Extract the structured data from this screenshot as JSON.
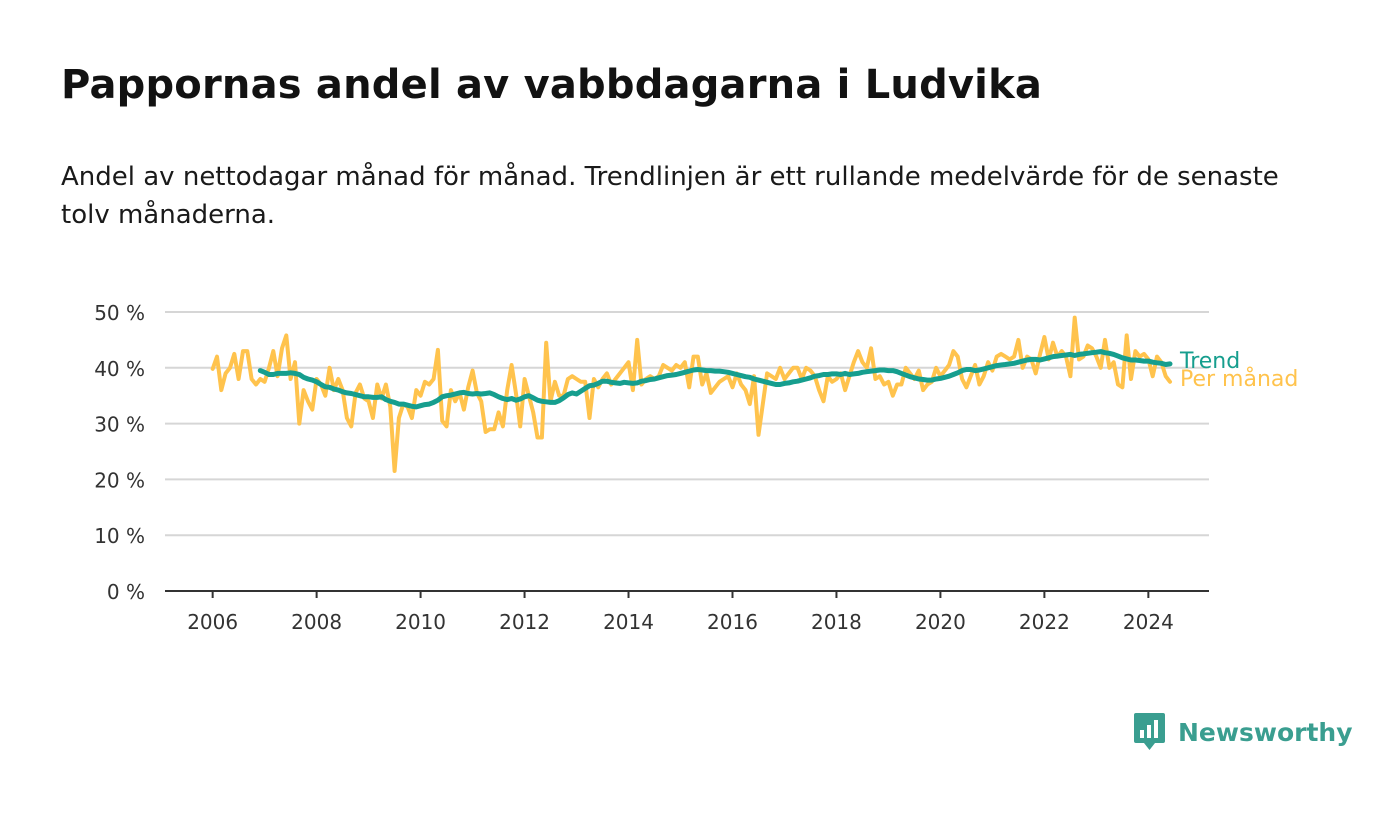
{
  "title": "Pappornas andel av vabbdagarna i Ludvika",
  "subtitle": "Andel av nettodagar månad för månad. Trendlinjen är ett rullande medelvärde för de senaste tolv månaderna.",
  "brand": {
    "name": "Newsworthy",
    "icon": "newsworthy-logo-icon",
    "color": "#3a9e90"
  },
  "colors": {
    "monthly": "#ffc34d",
    "trend": "#169e8e",
    "grid": "#d6d6d6",
    "axis": "#333333",
    "text": "#333333"
  },
  "chart_data": {
    "type": "line",
    "title": "",
    "xlabel": "",
    "ylabel": "",
    "x_start": "2006-01",
    "x_end": "2024-05",
    "xlim": [
      "2005-02",
      "2025-03"
    ],
    "ylim": [
      0,
      50
    ],
    "y_ticks": [
      0,
      10,
      20,
      30,
      40,
      50
    ],
    "y_tick_labels": [
      "0 %",
      "10 %",
      "20 %",
      "30 %",
      "40 %",
      "50 %"
    ],
    "x_ticks": [
      2006,
      2008,
      2010,
      2012,
      2014,
      2016,
      2018,
      2020,
      2022,
      2024
    ],
    "x_tick_labels": [
      "2006",
      "2008",
      "2010",
      "2012",
      "2014",
      "2016",
      "2018",
      "2020",
      "2022",
      "2024"
    ],
    "grid": true,
    "legend": "inline labels at line ends",
    "series": [
      {
        "name": "Per månad",
        "color": "#ffc34d",
        "values": [
          39.8,
          42.0,
          36.0,
          39.0,
          40.0,
          42.5,
          38.0,
          43.0,
          43.0,
          38.0,
          37.0,
          38.0,
          37.5,
          40.0,
          43.0,
          38.5,
          43.5,
          45.8,
          38.0,
          41.0,
          30.0,
          36.0,
          34.0,
          32.5,
          38.0,
          37.0,
          35.0,
          40.0,
          36.0,
          38.0,
          36.0,
          31.0,
          29.5,
          35.5,
          37.0,
          34.5,
          34.0,
          31.0,
          37.0,
          34.5,
          37.0,
          33.0,
          21.5,
          31.0,
          33.5,
          33.0,
          31.0,
          36.0,
          35.0,
          37.5,
          37.0,
          38.0,
          43.2,
          30.5,
          29.5,
          36.0,
          34.0,
          35.5,
          32.5,
          36.5,
          39.5,
          35.5,
          34.0,
          28.5,
          29.0,
          29.0,
          32.0,
          29.5,
          36.0,
          40.5,
          35.5,
          29.5,
          38.0,
          35.0,
          32.0,
          27.5,
          27.5,
          44.5,
          34.0,
          37.5,
          35.0,
          35.0,
          38.0,
          38.5,
          38.0,
          37.5,
          37.5,
          31.0,
          38.0,
          36.5,
          38.0,
          39.0,
          37.0,
          38.0,
          39.0,
          40.0,
          41.0,
          36.0,
          45.0,
          37.0,
          38.0,
          38.5,
          38.0,
          38.5,
          40.5,
          40.0,
          39.5,
          40.5,
          40.0,
          41.0,
          36.5,
          42.0,
          42.0,
          37.0,
          39.0,
          35.5,
          36.5,
          37.5,
          38.0,
          38.5,
          36.5,
          39.0,
          37.0,
          36.0,
          33.5,
          38.5,
          28.0,
          33.5,
          39.0,
          38.5,
          38.0,
          40.0,
          38.0,
          39.0,
          40.0,
          40.0,
          38.0,
          40.0,
          39.5,
          38.5,
          36.0,
          34.0,
          38.5,
          37.5,
          38.0,
          39.0,
          36.0,
          38.5,
          41.0,
          43.0,
          41.0,
          40.0,
          43.5,
          38.0,
          38.5,
          37.0,
          37.5,
          35.0,
          37.0,
          37.0,
          40.0,
          39.0,
          38.0,
          39.5,
          36.0,
          37.0,
          37.5,
          40.0,
          38.5,
          39.5,
          40.5,
          43.0,
          42.0,
          38.0,
          36.5,
          38.5,
          40.5,
          37.0,
          38.5,
          41.0,
          39.5,
          42.0,
          42.5,
          42.0,
          41.5,
          42.0,
          45.0,
          40.0,
          42.0,
          41.5,
          39.0,
          42.5,
          45.5,
          41.5,
          44.5,
          42.0,
          43.0,
          42.0,
          38.5,
          49.0,
          41.5,
          42.0,
          44.0,
          43.5,
          42.0,
          40.0,
          45.0,
          40.0,
          41.0,
          37.0,
          36.5,
          45.8,
          38.0,
          43.0,
          42.0,
          42.5,
          41.5,
          38.5,
          42.0,
          41.0,
          38.5,
          37.5
        ]
      },
      {
        "name": "Trend",
        "color": "#169e8e",
        "start": "2006-12",
        "values": [
          39.5,
          39.2,
          38.8,
          38.8,
          39.0,
          39.0,
          39.0,
          39.1,
          39.0,
          38.8,
          38.3,
          38.0,
          37.8,
          37.5,
          37.0,
          36.6,
          36.5,
          36.2,
          36.0,
          35.7,
          35.5,
          35.4,
          35.2,
          35.0,
          34.8,
          34.8,
          34.7,
          34.7,
          34.8,
          34.3,
          34.0,
          33.8,
          33.5,
          33.5,
          33.3,
          33.1,
          33.0,
          33.2,
          33.4,
          33.5,
          33.8,
          34.2,
          34.8,
          35.0,
          35.1,
          35.3,
          35.5,
          35.6,
          35.4,
          35.3,
          35.4,
          35.3,
          35.4,
          35.5,
          35.2,
          34.8,
          34.5,
          34.3,
          34.5,
          34.2,
          34.4,
          34.8,
          35.0,
          34.6,
          34.2,
          34.0,
          33.9,
          33.8,
          33.8,
          34.1,
          34.6,
          35.2,
          35.5,
          35.3,
          35.8,
          36.3,
          36.8,
          36.9,
          37.2,
          37.6,
          37.6,
          37.4,
          37.3,
          37.2,
          37.4,
          37.3,
          37.2,
          37.3,
          37.6,
          37.7,
          37.9,
          38.0,
          38.2,
          38.4,
          38.6,
          38.7,
          38.8,
          39.0,
          39.2,
          39.4,
          39.6,
          39.7,
          39.6,
          39.5,
          39.5,
          39.4,
          39.4,
          39.3,
          39.2,
          39.0,
          38.8,
          38.6,
          38.4,
          38.3,
          38.0,
          37.8,
          37.6,
          37.4,
          37.2,
          37.0,
          37.0,
          37.2,
          37.3,
          37.5,
          37.6,
          37.8,
          38.0,
          38.2,
          38.5,
          38.6,
          38.8,
          38.8,
          38.9,
          38.9,
          38.8,
          39.0,
          38.8,
          38.9,
          39.0,
          39.2,
          39.3,
          39.4,
          39.5,
          39.6,
          39.6,
          39.5,
          39.5,
          39.3,
          39.0,
          38.7,
          38.4,
          38.2,
          38.0,
          37.9,
          37.8,
          37.8,
          38.0,
          38.1,
          38.3,
          38.5,
          38.8,
          39.1,
          39.5,
          39.7,
          39.7,
          39.5,
          39.6,
          39.8,
          40.0,
          40.2,
          40.4,
          40.5,
          40.6,
          40.7,
          40.8,
          41.0,
          41.2,
          41.4,
          41.5,
          41.5,
          41.4,
          41.6,
          41.8,
          42.0,
          42.1,
          42.2,
          42.3,
          42.4,
          42.2,
          42.4,
          42.5,
          42.6,
          42.7,
          42.8,
          42.9,
          42.7,
          42.6,
          42.4,
          42.1,
          41.8,
          41.6,
          41.4,
          41.4,
          41.3,
          41.2,
          41.2,
          41.0,
          40.9,
          40.8,
          40.6,
          40.7
        ]
      }
    ]
  }
}
